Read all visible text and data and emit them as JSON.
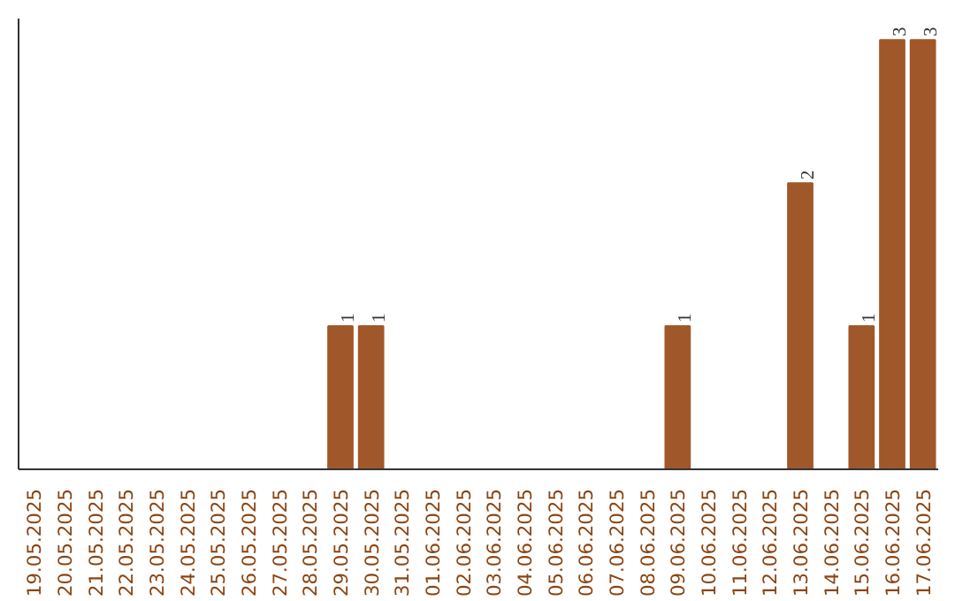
{
  "chart_data": {
    "type": "bar",
    "categories": [
      "19.05.2025",
      "20.05.2025",
      "21.05.2025",
      "22.05.2025",
      "23.05.2025",
      "24.05.2025",
      "25.05.2025",
      "26.05.2025",
      "27.05.2025",
      "28.05.2025",
      "29.05.2025",
      "30.05.2025",
      "31.05.2025",
      "01.06.2025",
      "02.06.2025",
      "03.06.2025",
      "04.06.2025",
      "05.06.2025",
      "06.06.2025",
      "07.06.2025",
      "08.06.2025",
      "09.06.2025",
      "10.06.2025",
      "11.06.2025",
      "12.06.2025",
      "13.06.2025",
      "14.06.2025",
      "15.06.2025",
      "16.06.2025",
      "17.06.2025"
    ],
    "values": [
      0,
      0,
      0,
      0,
      0,
      0,
      0,
      0,
      0,
      0,
      1,
      1,
      0,
      0,
      0,
      0,
      0,
      0,
      0,
      0,
      0,
      1,
      0,
      0,
      0,
      2,
      0,
      1,
      3,
      3
    ],
    "value_labels": [
      null,
      null,
      null,
      null,
      null,
      null,
      null,
      null,
      null,
      null,
      "1",
      "1",
      null,
      null,
      null,
      null,
      null,
      null,
      null,
      null,
      null,
      "1",
      null,
      null,
      null,
      "2",
      null,
      "1",
      "3",
      "3"
    ],
    "color": "#a0572a",
    "grid": false
  }
}
